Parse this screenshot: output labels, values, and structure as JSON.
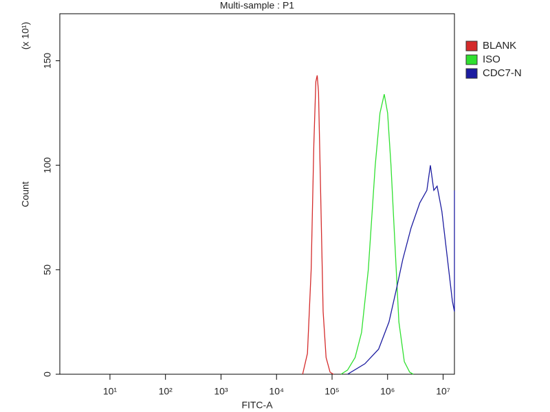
{
  "chart_data": {
    "type": "line",
    "title": "Multi-sample : P1",
    "x_label": "FITC-A",
    "y_label": "Count",
    "y_multiplier": "(x 10¹)",
    "xscale": "log",
    "legend": "right",
    "xlim": [
      1.25,
      16000000
    ],
    "ylim": [
      0,
      172.5
    ],
    "xticks": [
      {
        "value": 10,
        "label": "10¹"
      },
      {
        "value": 100,
        "label": "10²"
      },
      {
        "value": 1000,
        "label": "10³"
      },
      {
        "value": 10000,
        "label": "10⁴"
      },
      {
        "value": 100000,
        "label": "10⁵"
      },
      {
        "value": 1000000,
        "label": "10⁶"
      },
      {
        "value": 10000000,
        "label": "10⁷"
      }
    ],
    "yticks": [
      0,
      50,
      100,
      150
    ],
    "series": [
      {
        "name": "BLANK",
        "color": "#d42a2a",
        "x": [
          29500,
          36000,
          42000,
          47000,
          51000,
          54000,
          57000,
          62000,
          69000,
          78000,
          92000,
          106000
        ],
        "values": [
          0,
          10,
          50,
          110,
          140,
          143,
          135,
          90,
          30,
          8,
          1,
          0
        ]
      },
      {
        "name": "ISO",
        "color": "#2fe02f",
        "x": [
          145000,
          190000,
          260000,
          340000,
          450000,
          600000,
          730000,
          870000,
          1000000,
          1150000,
          1370000,
          1600000,
          2000000,
          2500000,
          2900000
        ],
        "values": [
          0,
          2,
          8,
          20,
          50,
          100,
          125,
          134,
          125,
          100,
          60,
          25,
          6,
          1,
          0
        ]
      },
      {
        "name": "CDC7-N",
        "color": "#1c1ca0",
        "x": [
          190000,
          390000,
          690000,
          1060000,
          1420000,
          1880000,
          2650000,
          3800000,
          5100000,
          5900000,
          6800000,
          7800000,
          9500000,
          12000000,
          14700000,
          16000000,
          16000000
        ],
        "values": [
          0,
          5,
          12,
          25,
          40,
          55,
          70,
          82,
          88,
          100,
          88,
          90,
          78,
          55,
          35,
          30,
          88
        ]
      }
    ]
  }
}
